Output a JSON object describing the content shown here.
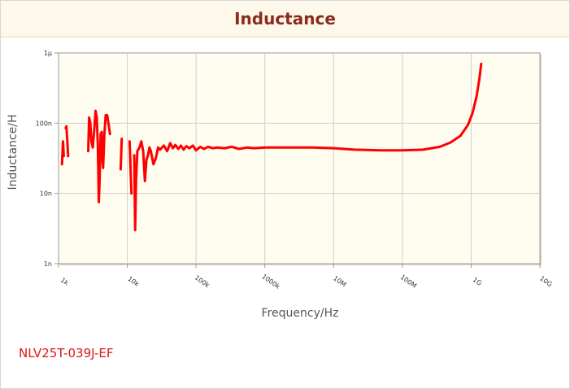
{
  "header": {
    "title": "Inductance"
  },
  "part_number": "NLV25T-039J-EF",
  "colors": {
    "series": "#ff0000",
    "plot_bg": "#fffcf0",
    "header_bg": "#fdf8ea",
    "title": "#8a2b1e",
    "part_number": "#d81818"
  },
  "chart_data": {
    "type": "line",
    "title": "Inductance",
    "xlabel": "Frequency/Hz",
    "ylabel": "Inductance/H",
    "xscale": "log",
    "yscale": "log",
    "xlim": [
      1000,
      10000000000
    ],
    "ylim": [
      1e-09,
      1e-06
    ],
    "grid": true,
    "x_ticks": [
      {
        "value": 1000,
        "label": "1k"
      },
      {
        "value": 10000,
        "label": "10k"
      },
      {
        "value": 100000,
        "label": "100k"
      },
      {
        "value": 1000000,
        "label": "1000k"
      },
      {
        "value": 10000000,
        "label": "10M"
      },
      {
        "value": 100000000,
        "label": "100M"
      },
      {
        "value": 1000000000,
        "label": "1G"
      },
      {
        "value": 10000000000,
        "label": "10G"
      }
    ],
    "y_ticks": [
      {
        "value": 1e-09,
        "label": "1n"
      },
      {
        "value": 1e-08,
        "label": "10n"
      },
      {
        "value": 1e-07,
        "label": "100n"
      },
      {
        "value": 1e-06,
        "label": "1µ"
      }
    ],
    "series": [
      {
        "segments": [
          [
            [
              1120,
              2.6e-08
            ],
            [
              1160,
              5.5e-08
            ],
            [
              1190,
              3.4e-08
            ]
          ],
          [
            [
              1270,
              8.5e-08
            ],
            [
              1300,
              9e-08
            ],
            [
              1340,
              5.8e-08
            ],
            [
              1380,
              3.4e-08
            ]
          ],
          [
            [
              2700,
              4e-08
            ],
            [
              2780,
              1.2e-07
            ],
            [
              2900,
              1e-07
            ],
            [
              3000,
              5.5e-08
            ],
            [
              3150,
              4.5e-08
            ],
            [
              3300,
              8e-08
            ],
            [
              3450,
              1.5e-07
            ],
            [
              3600,
              1.2e-07
            ],
            [
              3720,
              5e-08
            ],
            [
              3850,
              7.5e-09
            ],
            [
              3950,
              1.5e-08
            ],
            [
              4100,
              7e-08
            ],
            [
              4250,
              7.5e-08
            ],
            [
              4350,
              3e-08
            ],
            [
              4450,
              2.3e-08
            ],
            [
              4650,
              7e-08
            ],
            [
              4850,
              1.3e-07
            ],
            [
              5100,
              1.3e-07
            ],
            [
              5350,
              9.5e-08
            ],
            [
              5600,
              7e-08
            ]
          ],
          [
            [
              8000,
              2.2e-08
            ],
            [
              8300,
              6e-08
            ]
          ],
          [
            [
              10800,
              5.5e-08
            ],
            [
              11200,
              2e-08
            ],
            [
              11500,
              1e-08
            ]
          ],
          [
            [
              12600,
              3.5e-08
            ],
            [
              13000,
              3e-09
            ],
            [
              13400,
              1.5e-08
            ],
            [
              14000,
              4e-08
            ],
            [
              15000,
              4.5e-08
            ],
            [
              16000,
              5.5e-08
            ],
            [
              17000,
              4e-08
            ],
            [
              18000,
              1.5e-08
            ],
            [
              19000,
              3e-08
            ],
            [
              20000,
              3.5e-08
            ],
            [
              21000,
              4.5e-08
            ],
            [
              22000,
              4e-08
            ],
            [
              24000,
              2.6e-08
            ],
            [
              26000,
              3.2e-08
            ],
            [
              28000,
              4.5e-08
            ],
            [
              30000,
              4.2e-08
            ],
            [
              34000,
              4.8e-08
            ],
            [
              38000,
              4e-08
            ],
            [
              42000,
              5.2e-08
            ],
            [
              46000,
              4.4e-08
            ],
            [
              50000,
              4.9e-08
            ],
            [
              55000,
              4.3e-08
            ],
            [
              60000,
              4.8e-08
            ],
            [
              66000,
              4.2e-08
            ],
            [
              72000,
              4.7e-08
            ],
            [
              80000,
              4.4e-08
            ],
            [
              90000,
              4.8e-08
            ],
            [
              100000,
              4.1e-08
            ],
            [
              115000,
              4.6e-08
            ],
            [
              130000,
              4.3e-08
            ],
            [
              150000,
              4.6e-08
            ],
            [
              175000,
              4.4e-08
            ],
            [
              200000,
              4.5e-08
            ],
            [
              260000,
              4.4e-08
            ],
            [
              330000,
              4.6e-08
            ],
            [
              420000,
              4.3e-08
            ],
            [
              550000,
              4.5e-08
            ],
            [
              700000,
              4.4e-08
            ],
            [
              1000000,
              4.5e-08
            ],
            [
              2000000,
              4.5e-08
            ],
            [
              5000000,
              4.5e-08
            ],
            [
              10000000,
              4.4e-08
            ],
            [
              20000000,
              4.2e-08
            ],
            [
              50000000,
              4.1e-08
            ],
            [
              100000000,
              4.1e-08
            ],
            [
              200000000,
              4.2e-08
            ],
            [
              350000000,
              4.6e-08
            ],
            [
              500000000,
              5.3e-08
            ],
            [
              700000000,
              6.6e-08
            ],
            [
              900000000,
              9.5e-08
            ],
            [
              1050000000,
              1.4e-07
            ],
            [
              1200000000,
              2.4e-07
            ],
            [
              1320000000,
              4.3e-07
            ],
            [
              1400000000,
              7e-07
            ]
          ]
        ]
      }
    ]
  }
}
